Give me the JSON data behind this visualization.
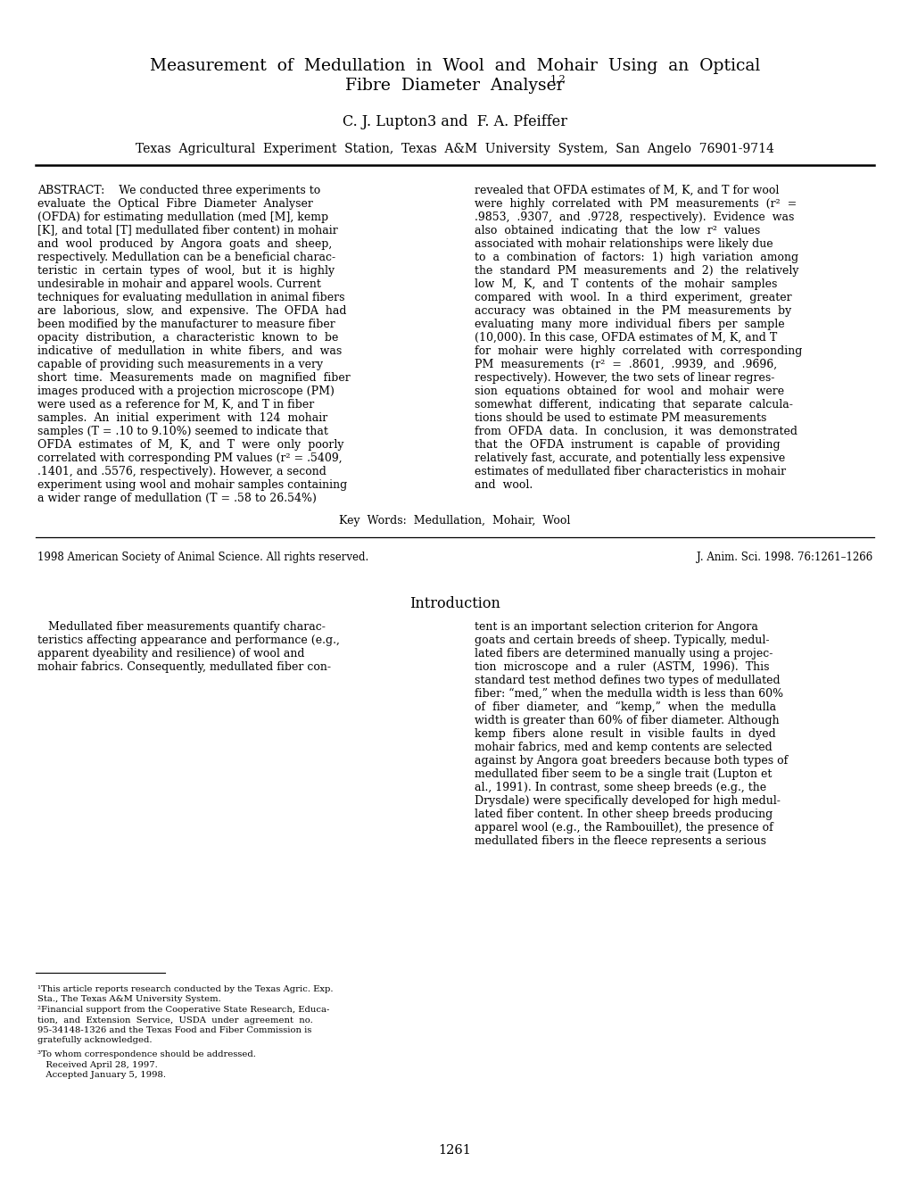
{
  "title_line1": "Measurement  of  Medullation  in  Wool  and  Mohair  Using  an  Optical",
  "title_line2": "Fibre  Diameter  Analyser",
  "title_sup": "1,2",
  "authors_main": "C. J. Lupton",
  "authors_sup": "3",
  "authors_rest": " and  F. A. Pfeiffer",
  "affiliation": "Texas  Agricultural  Experiment  Station,  Texas  A&M  University  System,  San  Angelo  76901-9714",
  "abstract_left_lines": [
    "ABSTRACT:    We conducted three experiments to",
    "evaluate  the  Optical  Fibre  Diameter  Analyser",
    "(OFDA) for estimating medullation (med [M], kemp",
    "[K], and total [T] medullated fiber content) in mohair",
    "and  wool  produced  by  Angora  goats  and  sheep,",
    "respectively. Medullation can be a beneficial charac-",
    "teristic  in  certain  types  of  wool,  but  it  is  highly",
    "undesirable in mohair and apparel wools. Current",
    "techniques for evaluating medullation in animal fibers",
    "are  laborious,  slow,  and  expensive.  The  OFDA  had",
    "been modified by the manufacturer to measure fiber",
    "opacity  distribution,  a  characteristic  known  to  be",
    "indicative  of  medullation  in  white  fibers,  and  was",
    "capable of providing such measurements in a very",
    "short  time.  Measurements  made  on  magnified  fiber",
    "images produced with a projection microscope (PM)",
    "were used as a reference for M, K, and T in fiber",
    "samples.  An  initial  experiment  with  124  mohair",
    "samples (T = .10 to 9.10%) seemed to indicate that",
    "OFDA  estimates  of  M,  K,  and  T  were  only  poorly",
    "correlated with corresponding PM values (r² = .5409,",
    ".1401, and .5576, respectively). However, a second",
    "experiment using wool and mohair samples containing",
    "a wider range of medullation (T = .58 to 26.54%)"
  ],
  "abstract_right_lines": [
    "revealed that OFDA estimates of M, K, and T for wool",
    "were  highly  correlated  with  PM  measurements  (r²  =",
    ".9853,  .9307,  and  .9728,  respectively).  Evidence  was",
    "also  obtained  indicating  that  the  low  r²  values",
    "associated with mohair relationships were likely due",
    "to  a  combination  of  factors:  1)  high  variation  among",
    "the  standard  PM  measurements  and  2)  the  relatively",
    "low  M,  K,  and  T  contents  of  the  mohair  samples",
    "compared  with  wool.  In  a  third  experiment,  greater",
    "accuracy  was  obtained  in  the  PM  measurements  by",
    "evaluating  many  more  individual  fibers  per  sample",
    "(10,000). In this case, OFDA estimates of M, K, and T",
    "for  mohair  were  highly  correlated  with  corresponding",
    "PM  measurements  (r²  =  .8601,  .9939,  and  .9696,",
    "respectively). However, the two sets of linear regres-",
    "sion  equations  obtained  for  wool  and  mohair  were",
    "somewhat  different,  indicating  that  separate  calcula-",
    "tions should be used to estimate PM measurements",
    "from  OFDA  data.  In  conclusion,  it  was  demonstrated",
    "that  the  OFDA  instrument  is  capable  of  providing",
    "relatively fast, accurate, and potentially less expensive",
    "estimates of medullated fiber characteristics in mohair",
    "and  wool."
  ],
  "keywords": "Key  Words:  Medullation,  Mohair,  Wool",
  "footer_left": "1998 American Society of Animal Science. All rights reserved.",
  "footer_right": "J. Anim. Sci. 1998. 76:1261–1266",
  "intro_heading": "Introduction",
  "intro_left_lines": [
    "   Medullated fiber measurements quantify charac-",
    "teristics affecting appearance and performance (e.g.,",
    "apparent dyeability and resilience) of wool and",
    "mohair fabrics. Consequently, medullated fiber con-"
  ],
  "intro_right_lines": [
    "tent is an important selection criterion for Angora",
    "goats and certain breeds of sheep. Typically, medul-",
    "lated fibers are determined manually using a projec-",
    "tion  microscope  and  a  ruler  (ASTM,  1996).  This",
    "standard test method defines two types of medullated",
    "fiber: “med,” when the medulla width is less than 60%",
    "of  fiber  diameter,  and  “kemp,”  when  the  medulla",
    "width is greater than 60% of fiber diameter. Although",
    "kemp  fibers  alone  result  in  visible  faults  in  dyed",
    "mohair fabrics, med and kemp contents are selected",
    "against by Angora goat breeders because both types of",
    "medullated fiber seem to be a single trait (Lupton et",
    "al., 1991). In contrast, some sheep breeds (e.g., the",
    "Drysdale) were specifically developed for high medul-",
    "lated fiber content. In other sheep breeds producing",
    "apparel wool (e.g., the Rambouillet), the presence of",
    "medullated fibers in the fleece represents a serious"
  ],
  "footnote_line1": "¹This article reports research conducted by the Texas Agric. Exp.",
  "footnote_line2": "Sta., The Texas A&M University System.",
  "footnote_line3": "²Financial support from the Cooperative State Research, Educa-",
  "footnote_line4": "tion,  and  Extension  Service,  USDA  under  agreement  no.",
  "footnote_line5": "95-34148-1326 and the Texas Food and Fiber Commission is",
  "footnote_line6": "gratefully acknowledged.",
  "footnote_line7": "³To whom correspondence should be addressed.",
  "footnote_line8": "   Received April 28, 1997.",
  "footnote_line9": "   Accepted January 5, 1998.",
  "page_number": "1261",
  "bg_color": "#ffffff",
  "text_color": "#000000"
}
